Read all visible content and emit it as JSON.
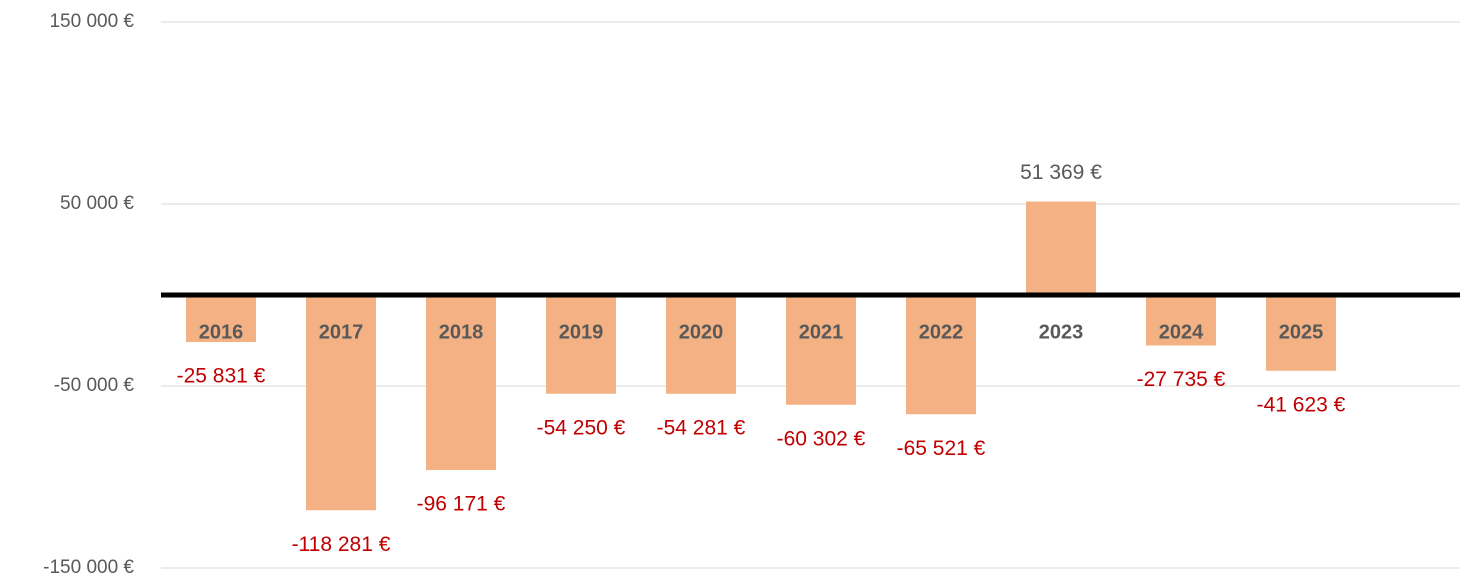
{
  "chart_data": {
    "type": "bar",
    "categories": [
      "2016",
      "2017",
      "2018",
      "2019",
      "2020",
      "2021",
      "2022",
      "2023",
      "2024",
      "2025"
    ],
    "values": [
      -25831,
      -118281,
      -96171,
      -54250,
      -54281,
      -60302,
      -65521,
      51369,
      -27735,
      -41623
    ],
    "value_labels": [
      "-25 831 €",
      "-118 281 €",
      "-96 171 €",
      "-54 250 €",
      "-54 281 €",
      "-60 302 €",
      "-65 521 €",
      "51 369 €",
      "-27 735 €",
      "-41 623 €"
    ],
    "color": "#f4b183",
    "label_color": "#595959",
    "negative_label_color": "#c00000",
    "ylim": [
      -150000,
      150000
    ],
    "yticks": [
      {
        "value": -150000,
        "label": "-150 000 €"
      },
      {
        "value": -50000,
        "label": "-50 000 €"
      },
      {
        "value": 50000,
        "label": "50 000 €"
      },
      {
        "value": 150000,
        "label": "150 000 €"
      }
    ],
    "grid": true
  }
}
